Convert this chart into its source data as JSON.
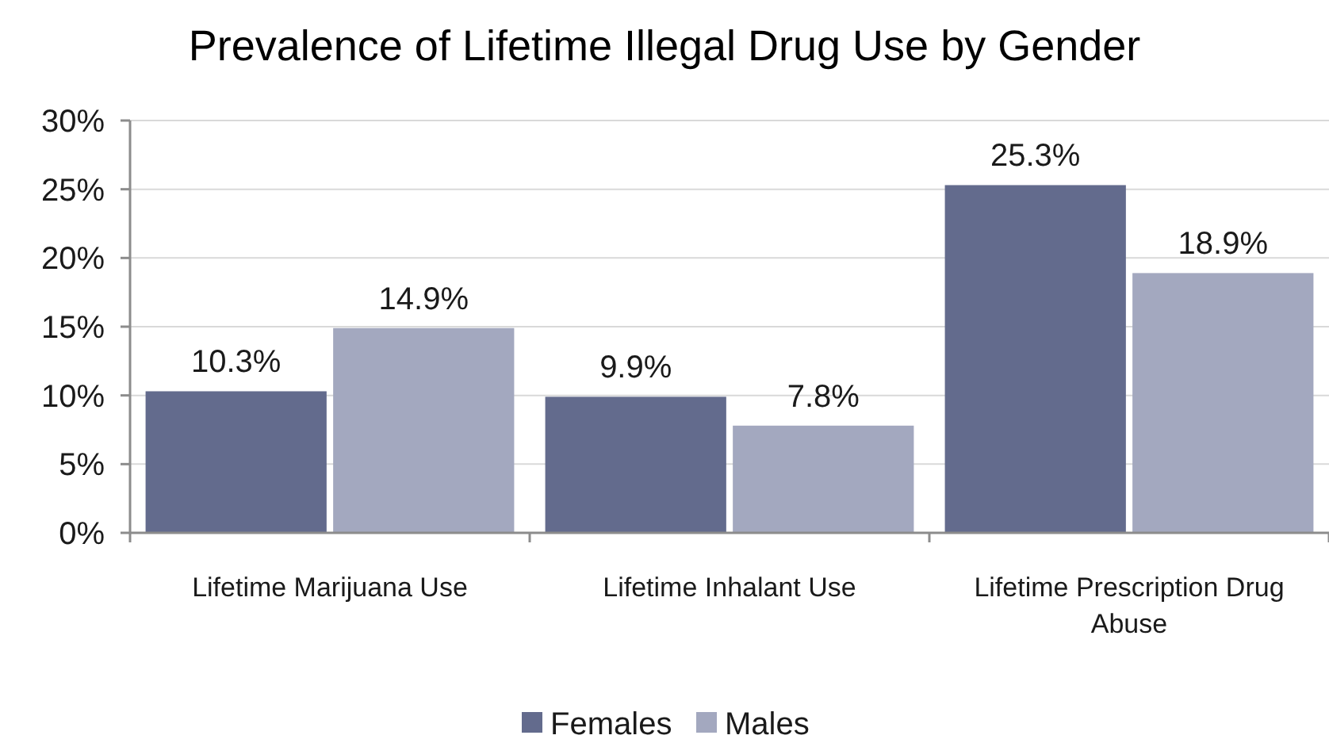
{
  "chart_data": {
    "type": "bar",
    "title": "Prevalence of Lifetime Illegal Drug Use by Gender",
    "categories": [
      "Lifetime Marijuana Use",
      "Lifetime Inhalant Use",
      "Lifetime Prescription Drug Abuse"
    ],
    "series": [
      {
        "name": "Females",
        "color": "#636b8d",
        "values": [
          10.3,
          9.9,
          25.3
        ],
        "value_labels": [
          "10.3%",
          "9.9%",
          "25.3%"
        ]
      },
      {
        "name": "Males",
        "color": "#a3a8bf",
        "values": [
          14.9,
          7.8,
          18.9
        ],
        "value_labels": [
          "14.9%",
          "7.8%",
          "18.9%"
        ]
      }
    ],
    "ylim": [
      0,
      30
    ],
    "yticks": [
      {
        "value": 0,
        "label": "0%"
      },
      {
        "value": 5,
        "label": "5%"
      },
      {
        "value": 10,
        "label": "10%"
      },
      {
        "value": 15,
        "label": "15%"
      },
      {
        "value": 20,
        "label": "20%"
      },
      {
        "value": 25,
        "label": "25%"
      },
      {
        "value": 30,
        "label": "30%"
      }
    ],
    "grid": "y",
    "legend": "bottom"
  }
}
